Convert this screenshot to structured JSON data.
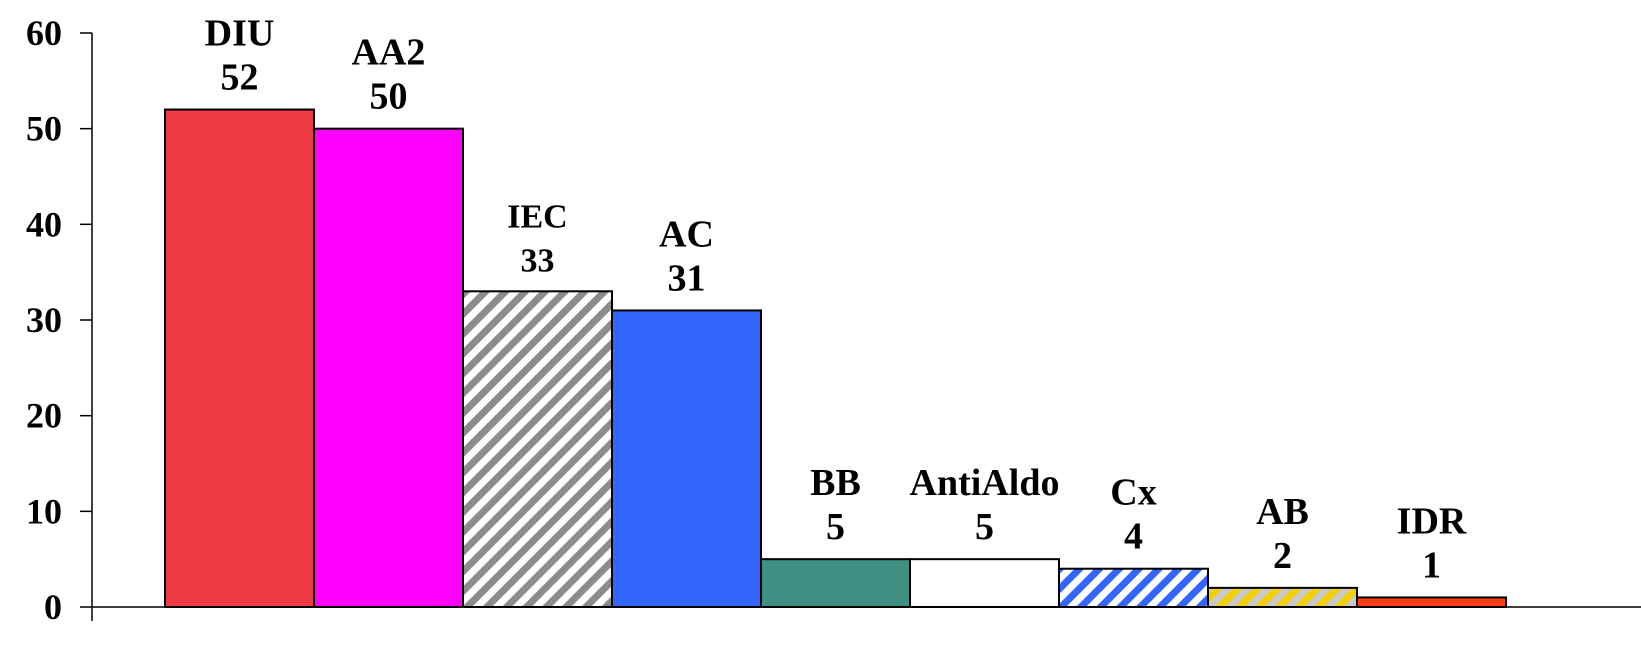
{
  "chart_data": {
    "type": "bar",
    "categories": [
      "DIU",
      "AA2",
      "IEC",
      "AC",
      "BB",
      "AntiAldo",
      "Cx",
      "AB",
      "IDR"
    ],
    "values": [
      52,
      50,
      33,
      31,
      5,
      5,
      4,
      2,
      1
    ],
    "ylim": [
      0,
      60
    ],
    "yticks": [
      0,
      10,
      20,
      30,
      40,
      50,
      60
    ],
    "grid": false,
    "title": "",
    "xlabel": "",
    "ylabel": "",
    "bar_styles": [
      {
        "fill": "#ef3a45",
        "pattern": "solid"
      },
      {
        "fill": "#ff00ff",
        "pattern": "solid"
      },
      {
        "fill": "#ffffff",
        "stripe": "#8c8c8c",
        "pattern": "diagonal-stripes"
      },
      {
        "fill": "#3366ff",
        "pattern": "solid"
      },
      {
        "fill": "#3f9183",
        "pattern": "solid"
      },
      {
        "fill": "#ffffff",
        "pattern": "solid"
      },
      {
        "fill": "#ffffff",
        "stripe": "#3366ff",
        "pattern": "diagonal-stripes"
      },
      {
        "fill": "#c9c9c9",
        "stripe": "#f5d000",
        "pattern": "diagonal-stripes"
      },
      {
        "fill": "#ff3d14",
        "pattern": "solid"
      }
    ]
  }
}
